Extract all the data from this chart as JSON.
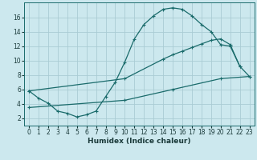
{
  "xlabel": "Humidex (Indice chaleur)",
  "bg_color": "#cce8ee",
  "line_color": "#1a6b6b",
  "grid_color": "#aaccd4",
  "xlim": [
    -0.5,
    23.5
  ],
  "ylim": [
    1.0,
    18.0
  ],
  "xticks": [
    0,
    1,
    2,
    3,
    4,
    5,
    6,
    7,
    8,
    9,
    10,
    11,
    12,
    13,
    14,
    15,
    16,
    17,
    18,
    19,
    20,
    21,
    22,
    23
  ],
  "yticks": [
    2,
    4,
    6,
    8,
    10,
    12,
    14,
    16
  ],
  "line1_x": [
    0,
    1,
    2,
    3,
    4,
    5,
    6,
    7,
    8,
    9,
    10,
    11,
    12,
    13,
    14,
    15,
    16,
    17,
    18,
    19,
    20,
    21,
    22
  ],
  "line1_y": [
    5.8,
    4.8,
    4.1,
    3.0,
    2.7,
    2.2,
    2.5,
    3.0,
    5.0,
    7.0,
    9.8,
    13.0,
    15.0,
    16.2,
    17.1,
    17.3,
    17.1,
    16.2,
    15.0,
    14.0,
    12.2,
    12.0,
    9.2
  ],
  "line2_x": [
    0,
    10,
    14,
    15,
    16,
    17,
    18,
    19,
    20,
    21,
    22,
    23
  ],
  "line2_y": [
    5.8,
    7.5,
    10.2,
    10.8,
    11.3,
    11.8,
    12.3,
    12.8,
    13.0,
    12.2,
    9.2,
    7.8
  ],
  "line3_x": [
    0,
    10,
    15,
    20,
    23
  ],
  "line3_y": [
    3.5,
    4.5,
    6.0,
    7.5,
    7.8
  ],
  "markersize": 3,
  "linewidth": 0.9,
  "tick_fontsize": 5.5,
  "xlabel_fontsize": 6.5
}
